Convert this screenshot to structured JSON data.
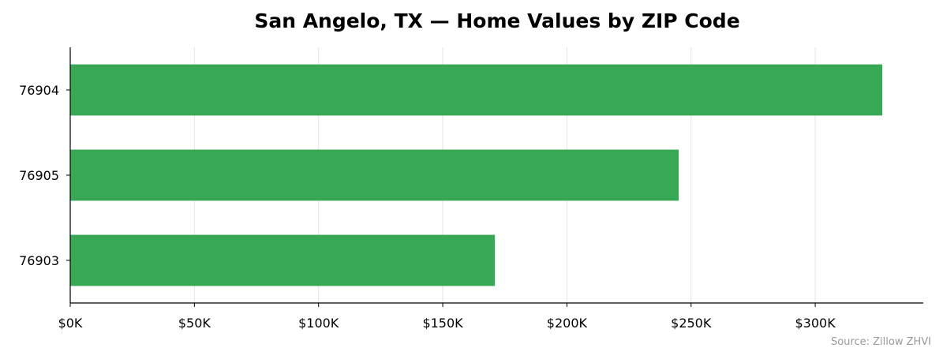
{
  "chart_data": {
    "type": "bar",
    "orientation": "horizontal",
    "title": "San Angelo, TX — Home Values by ZIP Code",
    "categories": [
      "76904",
      "76905",
      "76903"
    ],
    "values": [
      327000,
      245000,
      171000
    ],
    "bar_color": "#37a955",
    "x_ticks": [
      0,
      50000,
      100000,
      150000,
      200000,
      250000,
      300000
    ],
    "x_tick_labels": [
      "$0K",
      "$50K",
      "$100K",
      "$150K",
      "$200K",
      "$250K",
      "$300K"
    ],
    "xlim": [
      0,
      343500
    ],
    "grid": true,
    "source": "Source: Zillow ZHVI"
  }
}
